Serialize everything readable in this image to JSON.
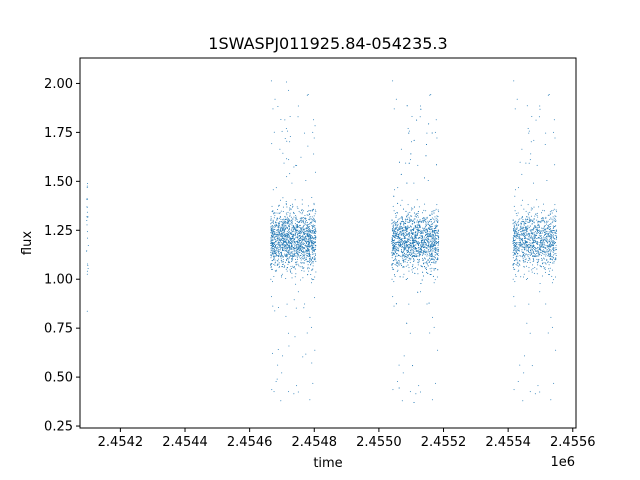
{
  "chart_data": {
    "type": "scatter",
    "title": "1SWASPJ011925.84-054235.3",
    "xlabel": "time",
    "ylabel": "flux",
    "x_offset_label": "1e6",
    "xlim": [
      2454075,
      2455610
    ],
    "ylim": [
      0.24,
      2.13
    ],
    "x_ticks": [
      2454200,
      2454400,
      2454600,
      2454800,
      2455000,
      2455200,
      2455400,
      2455600
    ],
    "x_tick_labels": [
      "2.4542",
      "2.4544",
      "2.4546",
      "2.4548",
      "2.4550",
      "2.4552",
      "2.4554",
      "2.4556"
    ],
    "y_ticks": [
      0.25,
      0.5,
      0.75,
      1.0,
      1.25,
      1.5,
      1.75,
      2.0
    ],
    "y_tick_labels": [
      "0.25",
      "0.50",
      "0.75",
      "1.00",
      "1.25",
      "1.50",
      "1.75",
      "2.00"
    ],
    "grid": false,
    "marker_color": "#1f77b4",
    "series": [
      {
        "seasons": [
          {
            "x_range": [
              2454095,
              2454101
            ],
            "y_center": 1.2,
            "y_spread": 0.3,
            "points": 25
          },
          {
            "x_range": [
              2454665,
              2454805
            ],
            "y_center": 1.2,
            "y_spread": 0.12,
            "points": 1600
          },
          {
            "x_range": [
              2455040,
              2455185
            ],
            "y_center": 1.2,
            "y_spread": 0.12,
            "points": 1700
          },
          {
            "x_range": [
              2455415,
              2455550
            ],
            "y_center": 1.2,
            "y_spread": 0.12,
            "points": 1100
          }
        ]
      }
    ]
  }
}
